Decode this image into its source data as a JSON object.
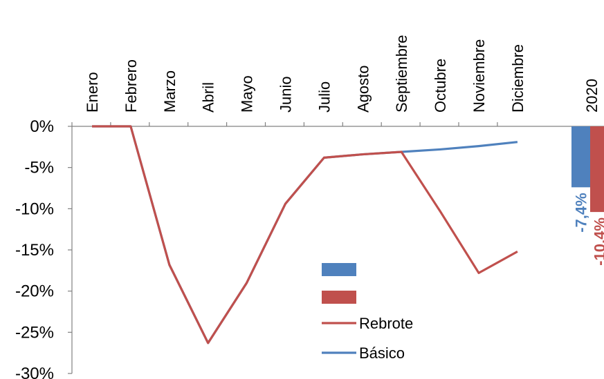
{
  "chart_data": {
    "type": "line",
    "categories": [
      "Enero",
      "Febrero",
      "Marzo",
      "Abril",
      "Mayo",
      "Junio",
      "Julio",
      "Agosto",
      "Septiembre",
      "Octubre",
      "Noviembre",
      "Diciembre"
    ],
    "series": [
      {
        "name": "Rebrote",
        "color": "#c0504d",
        "values": [
          0,
          0,
          -16.8,
          -26.3,
          -19.0,
          -9.4,
          -3.8,
          -3.4,
          -3.1,
          -10.3,
          -17.8,
          -15.2
        ]
      },
      {
        "name": "Básico",
        "color": "#4f81bd",
        "values": [
          0,
          0,
          -16.8,
          -26.3,
          -19.0,
          -9.4,
          -3.8,
          -3.4,
          -3.1,
          -2.8,
          -2.4,
          -1.9
        ]
      }
    ],
    "annual": {
      "category": "2020",
      "bars": [
        {
          "series": "Básico",
          "color": "#4f81bd",
          "value": -7.4,
          "label": "-7,4%"
        },
        {
          "series": "Rebrote",
          "color": "#c0504d",
          "value": -10.4,
          "label": "-10,4%"
        }
      ]
    },
    "y_ticks": [
      "0%",
      "-5%",
      "-10%",
      "-15%",
      "-20%",
      "-25%",
      "-30%"
    ],
    "ylim": [
      -30,
      0
    ],
    "grid": false,
    "legend_position": "bottom-center",
    "legend_labels": [
      "Rebrote",
      "Básico"
    ],
    "x_axis_position": "top",
    "x_tick_orientation": "vertical"
  }
}
